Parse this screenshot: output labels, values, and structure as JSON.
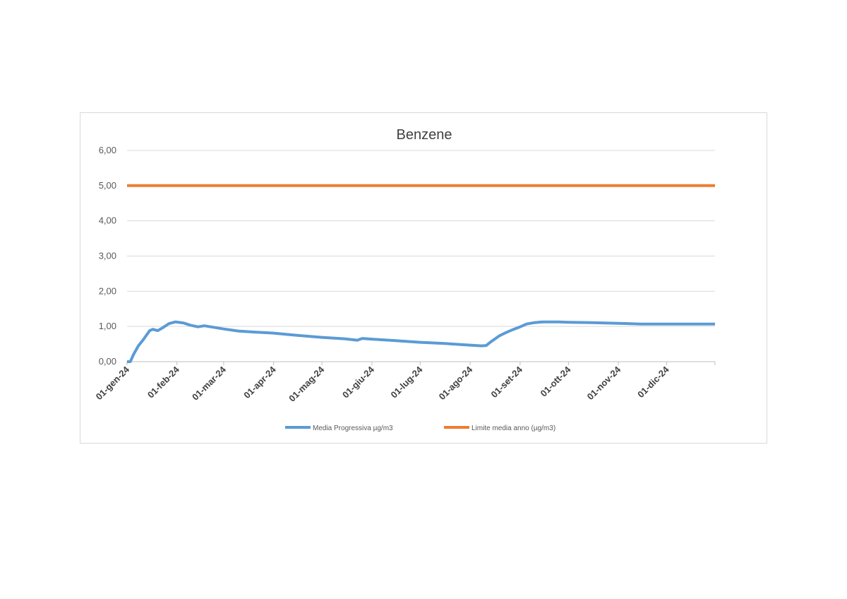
{
  "chart_data": {
    "type": "line",
    "title": "Benzene",
    "xlabel": "",
    "ylabel": "",
    "x_start": "2024-01-01",
    "x_end": "2024-12-31",
    "ylim": [
      0,
      6
    ],
    "y_ticks": [
      "0,00",
      "1,00",
      "2,00",
      "3,00",
      "4,00",
      "5,00",
      "6,00"
    ],
    "y_tick_values": [
      0,
      1,
      2,
      3,
      4,
      5,
      6
    ],
    "x_ticks": [
      {
        "label": "01-gen-24",
        "date": "2024-01-01"
      },
      {
        "label": "01-feb-24",
        "date": "2024-02-01"
      },
      {
        "label": "01-mar-24",
        "date": "2024-03-01"
      },
      {
        "label": "01-apr-24",
        "date": "2024-04-01"
      },
      {
        "label": "01-mag-24",
        "date": "2024-05-01"
      },
      {
        "label": "01-giu-24",
        "date": "2024-06-01"
      },
      {
        "label": "01-lug-24",
        "date": "2024-07-01"
      },
      {
        "label": "01-ago-24",
        "date": "2024-08-01"
      },
      {
        "label": "01-set-24",
        "date": "2024-09-01"
      },
      {
        "label": "01-ott-24",
        "date": "2024-10-01"
      },
      {
        "label": "01-nov-24",
        "date": "2024-11-01"
      },
      {
        "label": "01-dic-24",
        "date": "2024-12-01"
      }
    ],
    "grid": true,
    "legend": "bottom",
    "series": [
      {
        "name": "Media Progressiva µg/m3",
        "color": "#5b9bd5",
        "points": [
          [
            "2024-01-01",
            0.0
          ],
          [
            "2024-01-03",
            0.0
          ],
          [
            "2024-01-05",
            0.2
          ],
          [
            "2024-01-08",
            0.45
          ],
          [
            "2024-01-11",
            0.62
          ],
          [
            "2024-01-15",
            0.88
          ],
          [
            "2024-01-17",
            0.92
          ],
          [
            "2024-01-20",
            0.88
          ],
          [
            "2024-01-23",
            0.96
          ],
          [
            "2024-01-27",
            1.08
          ],
          [
            "2024-01-31",
            1.13
          ],
          [
            "2024-02-05",
            1.1
          ],
          [
            "2024-02-09",
            1.04
          ],
          [
            "2024-02-14",
            0.99
          ],
          [
            "2024-02-18",
            1.02
          ],
          [
            "2024-02-22",
            0.99
          ],
          [
            "2024-03-01",
            0.93
          ],
          [
            "2024-03-10",
            0.87
          ],
          [
            "2024-03-20",
            0.84
          ],
          [
            "2024-04-01",
            0.81
          ],
          [
            "2024-04-15",
            0.75
          ],
          [
            "2024-05-01",
            0.69
          ],
          [
            "2024-05-15",
            0.65
          ],
          [
            "2024-05-21",
            0.62
          ],
          [
            "2024-05-23",
            0.61
          ],
          [
            "2024-05-26",
            0.66
          ],
          [
            "2024-06-01",
            0.64
          ],
          [
            "2024-06-15",
            0.6
          ],
          [
            "2024-07-01",
            0.55
          ],
          [
            "2024-07-15",
            0.52
          ],
          [
            "2024-08-01",
            0.47
          ],
          [
            "2024-08-08",
            0.45
          ],
          [
            "2024-08-11",
            0.46
          ],
          [
            "2024-08-14",
            0.57
          ],
          [
            "2024-08-19",
            0.73
          ],
          [
            "2024-08-23",
            0.82
          ],
          [
            "2024-08-28",
            0.92
          ],
          [
            "2024-09-01",
            0.99
          ],
          [
            "2024-09-05",
            1.07
          ],
          [
            "2024-09-10",
            1.11
          ],
          [
            "2024-09-15",
            1.13
          ],
          [
            "2024-09-25",
            1.13
          ],
          [
            "2024-10-01",
            1.12
          ],
          [
            "2024-10-15",
            1.11
          ],
          [
            "2024-11-01",
            1.09
          ],
          [
            "2024-11-15",
            1.07
          ],
          [
            "2024-12-01",
            1.07
          ],
          [
            "2024-12-15",
            1.07
          ],
          [
            "2024-12-31",
            1.07
          ]
        ]
      },
      {
        "name": "Limite media anno (µg/m3)",
        "color": "#ed7d31",
        "points": [
          [
            "2024-01-01",
            5.0
          ],
          [
            "2024-12-31",
            5.0
          ]
        ]
      }
    ]
  }
}
